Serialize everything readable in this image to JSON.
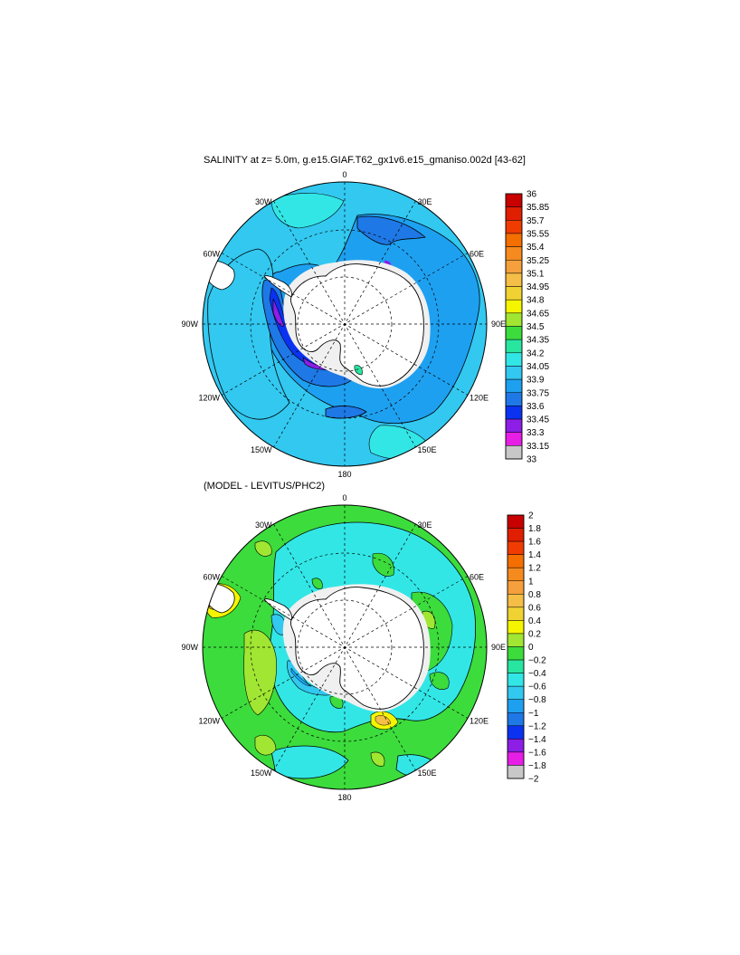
{
  "panels": [
    {
      "title": "SALINITY at z=   5.0m, g.e15.GIAF.T62_gx1v6.e15_gmaniso.002d [43-62]",
      "lon_labels": [
        "0",
        "30E",
        "60E",
        "90E",
        "120E",
        "150E",
        "180",
        "150W",
        "120W",
        "90W",
        "60W",
        "30W"
      ],
      "colorbar": {
        "labels": [
          "36",
          "35.85",
          "35.7",
          "35.55",
          "35.4",
          "35.25",
          "35.1",
          "34.95",
          "34.8",
          "34.65",
          "34.5",
          "34.35",
          "34.2",
          "34.05",
          "33.9",
          "33.75",
          "33.6",
          "33.45",
          "33.3",
          "33.15",
          "33"
        ],
        "colors": [
          "#c80000",
          "#e01e00",
          "#f03c00",
          "#f56e00",
          "#f58a1e",
          "#f5a03c",
          "#f5be46",
          "#f0d232",
          "#f5f500",
          "#a0e632",
          "#3cdc3c",
          "#28e6a0",
          "#32e6e6",
          "#32c8f0",
          "#1ea0f0",
          "#1e78e6",
          "#0a32f0",
          "#8c1ee6",
          "#e61ee6",
          "#c8c8c8",
          "#6e6e6e"
        ]
      }
    },
    {
      "title": "(MODEL - LEVITUS/PHC2)",
      "lon_labels": [
        "0",
        "30E",
        "60E",
        "90E",
        "120E",
        "150E",
        "180",
        "150W",
        "120W",
        "90W",
        "60W",
        "30W"
      ],
      "colorbar": {
        "labels": [
          "2",
          "1.8",
          "1.6",
          "1.4",
          "1.2",
          "1",
          "0.8",
          "0.6",
          "0.4",
          "0.2",
          "0",
          "−0.2",
          "−0.4",
          "−0.6",
          "−0.8",
          "−1",
          "−1.2",
          "−1.4",
          "−1.6",
          "−1.8",
          "−2"
        ],
        "colors": [
          "#c80000",
          "#e01e00",
          "#f03c00",
          "#f56e00",
          "#f58a1e",
          "#f5a03c",
          "#f5be46",
          "#f0d232",
          "#f5f500",
          "#a0e632",
          "#3cdc3c",
          "#28e6a0",
          "#32e6e6",
          "#32c8f0",
          "#1ea0f0",
          "#1e78e6",
          "#0a32f0",
          "#8c1ee6",
          "#e61ee6",
          "#c8c8c8",
          "#6e6e6e"
        ]
      }
    }
  ]
}
